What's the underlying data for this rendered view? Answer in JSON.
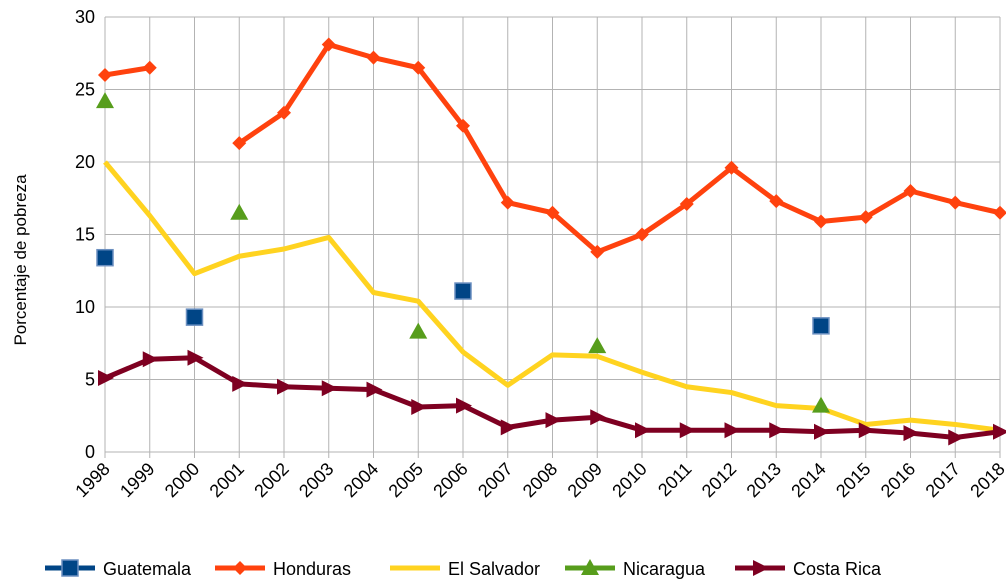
{
  "chart_data": {
    "type": "line",
    "y_label": "Porcentaje de pobreza",
    "categories": [
      "1998",
      "1999",
      "2000",
      "2001",
      "2002",
      "2003",
      "2004",
      "2005",
      "2006",
      "2007",
      "2008",
      "2009",
      "2010",
      "2011",
      "2012",
      "2013",
      "2014",
      "2015",
      "2016",
      "2017",
      "2018"
    ],
    "ylim": [
      0,
      30
    ],
    "yticks": [
      0,
      5,
      10,
      15,
      20,
      25,
      30
    ],
    "grid": true,
    "legend": "bottom",
    "series": [
      {
        "name": "Guatemala",
        "color": "#004586",
        "marker": "square",
        "values": [
          13.4,
          null,
          9.3,
          null,
          null,
          null,
          null,
          null,
          11.1,
          null,
          null,
          null,
          null,
          null,
          null,
          null,
          8.7,
          null,
          null,
          null,
          null
        ]
      },
      {
        "name": "Honduras",
        "color": "#ff420e",
        "marker": "diamond",
        "values": [
          26,
          26.5,
          null,
          21.3,
          23.4,
          28.1,
          27.2,
          26.5,
          22.5,
          17.2,
          16.5,
          13.8,
          15.0,
          17.1,
          19.6,
          17.3,
          15.9,
          16.2,
          18.0,
          17.2,
          16.5
        ]
      },
      {
        "name": "El Salvador",
        "color": "#ffd320",
        "marker": "none",
        "values": [
          20,
          16.3,
          12.3,
          13.5,
          14.0,
          14.8,
          11.0,
          10.4,
          6.9,
          4.6,
          6.7,
          6.6,
          5.5,
          4.5,
          4.1,
          3.2,
          3.0,
          1.9,
          2.2,
          1.9,
          1.5
        ]
      },
      {
        "name": "Nicaragua",
        "color": "#579d1c",
        "marker": "triangle",
        "values": [
          24.2,
          null,
          null,
          16.5,
          null,
          null,
          null,
          8.3,
          null,
          null,
          null,
          7.3,
          null,
          null,
          null,
          null,
          3.2,
          null,
          null,
          null,
          null
        ]
      },
      {
        "name": "Costa Rica",
        "color": "#7e0021",
        "marker": "arrow",
        "values": [
          5.1,
          6.4,
          6.5,
          4.7,
          4.5,
          4.4,
          4.3,
          3.1,
          3.2,
          1.7,
          2.2,
          2.4,
          1.5,
          1.5,
          1.5,
          1.5,
          1.4,
          1.5,
          1.3,
          1.0,
          1.4
        ]
      }
    ]
  }
}
